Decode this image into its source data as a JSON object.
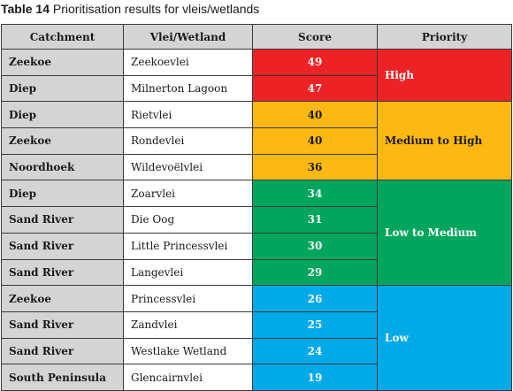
{
  "caption": {
    "number": "Table 14",
    "text": "Prioritisation results for vleis/wetlands"
  },
  "headers": {
    "catchment": "Catchment",
    "vlei": "Vlei/Wetland",
    "score": "Score",
    "priority": "Priority"
  },
  "colors": {
    "high": "#ed2224",
    "medium_to_high": "#fdb813",
    "low_to_medium": "#00a65e",
    "low": "#00a9e8"
  },
  "rows": [
    {
      "catchment": "Zeekoe",
      "vlei": "Zeekoevlei",
      "score": "49"
    },
    {
      "catchment": "Diep",
      "vlei": "Milnerton Lagoon",
      "score": "47"
    },
    {
      "catchment": "Diep",
      "vlei": "Rietvlei",
      "score": "40"
    },
    {
      "catchment": "Zeekoe",
      "vlei": "Rondevlei",
      "score": "40"
    },
    {
      "catchment": "Noordhoek",
      "vlei": "Wildevoëlvlei",
      "score": "36"
    },
    {
      "catchment": "Diep",
      "vlei": "Zoarvlei",
      "score": "34"
    },
    {
      "catchment": "Sand River",
      "vlei": "Die Oog",
      "score": "31"
    },
    {
      "catchment": "Sand River",
      "vlei": "Little Princessvlei",
      "score": "30"
    },
    {
      "catchment": "Sand River",
      "vlei": "Langevlei",
      "score": "29"
    },
    {
      "catchment": "Zeekoe",
      "vlei": "Princessvlei",
      "score": "26"
    },
    {
      "catchment": "Sand River",
      "vlei": "Zandvlei",
      "score": "25"
    },
    {
      "catchment": "Sand River",
      "vlei": "Westlake Wetland",
      "score": "24"
    },
    {
      "catchment": "South Peninsula",
      "vlei": "Glencairnvlei",
      "score": "19"
    }
  ],
  "priorities": {
    "high": "High",
    "medium_to_high": "Medium to High",
    "low_to_medium": "Low to Medium",
    "low": "Low"
  }
}
